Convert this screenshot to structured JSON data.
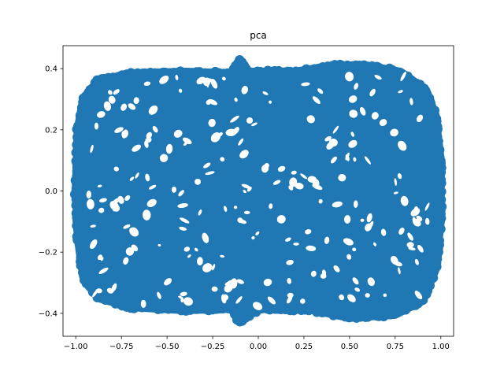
{
  "chart_data": {
    "type": "scatter",
    "title": "pca",
    "xlabel": "",
    "ylabel": "",
    "xlim": [
      -1.07,
      1.07
    ],
    "ylim": [
      -0.475,
      0.475
    ],
    "xticks": [
      -1.0,
      -0.75,
      -0.5,
      -0.25,
      0.0,
      0.25,
      0.5,
      0.75,
      1.0
    ],
    "xtick_labels": [
      "−1.00",
      "−0.75",
      "−0.50",
      "−0.25",
      "0.00",
      "0.25",
      "0.50",
      "0.75",
      "1.00"
    ],
    "yticks": [
      -0.4,
      -0.2,
      0.0,
      0.2,
      0.4
    ],
    "ytick_labels": [
      "−0.4",
      "−0.2",
      "0.0",
      "0.2",
      "0.4"
    ],
    "grid": false,
    "series": [
      {
        "color": "#1f77b4",
        "x_range": [
          -1.0,
          1.0
        ],
        "y_range": [
          -0.43,
          0.43
        ],
        "outline": [
          [
            -1.0,
            0.0
          ],
          [
            -0.99,
            0.2
          ],
          [
            -0.96,
            0.3
          ],
          [
            -0.88,
            0.36
          ],
          [
            -0.7,
            0.385
          ],
          [
            -0.4,
            0.39
          ],
          [
            -0.15,
            0.385
          ],
          [
            -0.1,
            0.43
          ],
          [
            -0.05,
            0.39
          ],
          [
            0.2,
            0.39
          ],
          [
            0.4,
            0.41
          ],
          [
            0.6,
            0.41
          ],
          [
            0.78,
            0.39
          ],
          [
            0.92,
            0.33
          ],
          [
            0.97,
            0.25
          ],
          [
            1.0,
            0.1
          ],
          [
            1.0,
            -0.1
          ],
          [
            0.97,
            -0.26
          ],
          [
            0.9,
            -0.36
          ],
          [
            0.75,
            -0.405
          ],
          [
            0.5,
            -0.415
          ],
          [
            0.3,
            -0.39
          ],
          [
            0.0,
            -0.385
          ],
          [
            -0.1,
            -0.43
          ],
          [
            -0.15,
            -0.385
          ],
          [
            -0.4,
            -0.39
          ],
          [
            -0.7,
            -0.38
          ],
          [
            -0.88,
            -0.35
          ],
          [
            -0.96,
            -0.28
          ],
          [
            -0.99,
            -0.15
          ]
        ]
      }
    ]
  }
}
